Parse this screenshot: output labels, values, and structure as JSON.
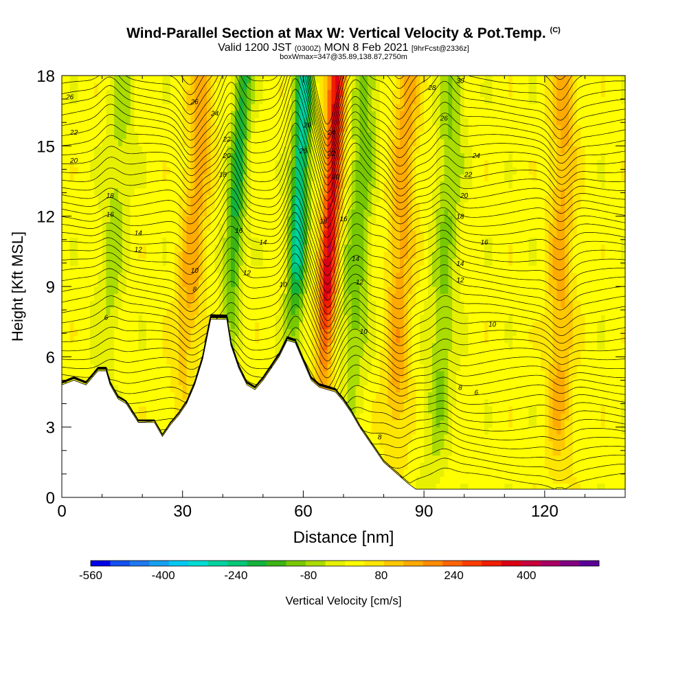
{
  "header": {
    "title": "Wind-Parallel Section at Max W: Vertical Velocity & Pot.Temp.",
    "title_tag": "(C)",
    "valid_prefix": "Valid 1200 JST",
    "valid_utc": "(0300Z)",
    "valid_date": "MON 8 Feb 2021",
    "forecast_info": "[9hrFcst@2336z]",
    "box_info": "boxWmax=347@35.89,138.87,2750m"
  },
  "chart_data": {
    "type": "heatmap",
    "xlabel": "Distance [nm]",
    "ylabel": "Height [Kft MSL]",
    "xlim": [
      0,
      140
    ],
    "ylim": [
      0,
      18
    ],
    "x_ticks": [
      0,
      30,
      60,
      90,
      120
    ],
    "y_ticks": [
      0,
      3,
      6,
      9,
      12,
      15,
      18
    ],
    "colorbar": {
      "label": "Vertical Velocity [cm/s]",
      "range": [
        -560,
        560
      ],
      "tick_values": [
        -560,
        -400,
        -240,
        -80,
        80,
        240,
        400
      ],
      "colors": [
        "#0000e6",
        "#1450f0",
        "#1e78f0",
        "#14a0f0",
        "#00c8f0",
        "#00dcd2",
        "#00d2a0",
        "#00c878",
        "#14b43c",
        "#3cb414",
        "#78c800",
        "#aadc00",
        "#e6f000",
        "#ffff00",
        "#ffe600",
        "#ffc800",
        "#ffaa00",
        "#ff8c00",
        "#ff6400",
        "#ff3c00",
        "#f01e00",
        "#dc0014",
        "#c8003c",
        "#aa0064",
        "#820082",
        "#5a0096"
      ]
    },
    "terrain_kft": [
      [
        0,
        4.8
      ],
      [
        3,
        5.0
      ],
      [
        6,
        4.8
      ],
      [
        9,
        5.4
      ],
      [
        11,
        5.4
      ],
      [
        12,
        4.8
      ],
      [
        14,
        4.2
      ],
      [
        16,
        4.0
      ],
      [
        19,
        3.2
      ],
      [
        23,
        3.2
      ],
      [
        25,
        2.6
      ],
      [
        27,
        3.1
      ],
      [
        29,
        3.5
      ],
      [
        31,
        4.0
      ],
      [
        33,
        4.8
      ],
      [
        35,
        5.9
      ],
      [
        37,
        7.6
      ],
      [
        41,
        7.6
      ],
      [
        42,
        6.5
      ],
      [
        44,
        5.5
      ],
      [
        46,
        4.8
      ],
      [
        48,
        4.6
      ],
      [
        50,
        5.0
      ],
      [
        52,
        5.5
      ],
      [
        54,
        6.0
      ],
      [
        56,
        6.7
      ],
      [
        58,
        6.6
      ],
      [
        60,
        5.8
      ],
      [
        62,
        5.0
      ],
      [
        64,
        4.7
      ],
      [
        66,
        4.6
      ],
      [
        68,
        4.5
      ],
      [
        70,
        4.1
      ],
      [
        72,
        3.6
      ],
      [
        74,
        3.0
      ],
      [
        76,
        2.5
      ],
      [
        78,
        2.0
      ],
      [
        80,
        1.5
      ],
      [
        82,
        1.2
      ],
      [
        84,
        0.9
      ],
      [
        86,
        0.6
      ],
      [
        88,
        0.35
      ],
      [
        92,
        0.35
      ],
      [
        95,
        0.35
      ],
      [
        140,
        0.35
      ]
    ],
    "w_features": [
      {
        "x": 66,
        "sign": 1,
        "peak": 347,
        "tilt": 0.28
      },
      {
        "x": 58,
        "sign": -1,
        "peak": -300,
        "tilt": 0.25
      },
      {
        "x": 42,
        "sign": -1,
        "peak": -210,
        "tilt": 0.35
      },
      {
        "x": 73,
        "sign": -1,
        "peak": -130,
        "tilt": 0.3
      },
      {
        "x": 95,
        "sign": -1,
        "peak": -110,
        "tilt": 0.25
      },
      {
        "x": 12,
        "sign": -1,
        "peak": -80,
        "tilt": 0.4
      },
      {
        "x": 32,
        "sign": 1,
        "peak": 130,
        "tilt": 0.35
      },
      {
        "x": 84,
        "sign": 1,
        "peak": 130,
        "tilt": 0.2
      },
      {
        "x": 124,
        "sign": 1,
        "peak": 120,
        "tilt": 0.1
      }
    ],
    "isentrope_labels": [
      {
        "text": "26",
        "x": 2,
        "y": 17.1
      },
      {
        "text": "22",
        "x": 3,
        "y": 15.6
      },
      {
        "text": "20",
        "x": 3,
        "y": 14.4
      },
      {
        "text": "18",
        "x": 12,
        "y": 12.9
      },
      {
        "text": "16",
        "x": 12,
        "y": 12.1
      },
      {
        "text": "14",
        "x": 19,
        "y": 11.3
      },
      {
        "text": "12",
        "x": 19,
        "y": 10.6
      },
      {
        "text": "10",
        "x": 33,
        "y": 9.7
      },
      {
        "text": "8",
        "x": 33,
        "y": 8.9
      },
      {
        "text": "6",
        "x": 11,
        "y": 7.7
      },
      {
        "text": "26",
        "x": 33,
        "y": 16.9
      },
      {
        "text": "24",
        "x": 38,
        "y": 16.4
      },
      {
        "text": "22",
        "x": 41,
        "y": 15.3
      },
      {
        "text": "20",
        "x": 41,
        "y": 14.6
      },
      {
        "text": "18",
        "x": 40,
        "y": 13.8
      },
      {
        "text": "16",
        "x": 44,
        "y": 11.4
      },
      {
        "text": "14",
        "x": 50,
        "y": 10.9
      },
      {
        "text": "12",
        "x": 46,
        "y": 9.6
      },
      {
        "text": "10",
        "x": 55,
        "y": 9.1
      },
      {
        "text": "26",
        "x": 61,
        "y": 15.9
      },
      {
        "text": "26",
        "x": 60,
        "y": 14.8
      },
      {
        "text": "24",
        "x": 67,
        "y": 15.6
      },
      {
        "text": "22",
        "x": 67,
        "y": 14.7
      },
      {
        "text": "20",
        "x": 68,
        "y": 13.7
      },
      {
        "text": "18",
        "x": 65,
        "y": 11.8
      },
      {
        "text": "16",
        "x": 70,
        "y": 11.9
      },
      {
        "text": "14",
        "x": 73,
        "y": 10.2
      },
      {
        "text": "12",
        "x": 74,
        "y": 9.2
      },
      {
        "text": "10",
        "x": 75,
        "y": 7.1
      },
      {
        "text": "8",
        "x": 79,
        "y": 2.6
      },
      {
        "text": "28",
        "x": 92,
        "y": 17.5
      },
      {
        "text": "30",
        "x": 99,
        "y": 17.8
      },
      {
        "text": "26",
        "x": 95,
        "y": 16.2
      },
      {
        "text": "24",
        "x": 103,
        "y": 14.6
      },
      {
        "text": "22",
        "x": 101,
        "y": 13.8
      },
      {
        "text": "20",
        "x": 100,
        "y": 12.9
      },
      {
        "text": "18",
        "x": 99,
        "y": 12.0
      },
      {
        "text": "16",
        "x": 105,
        "y": 10.9
      },
      {
        "text": "14",
        "x": 99,
        "y": 10.0
      },
      {
        "text": "12",
        "x": 99,
        "y": 9.3
      },
      {
        "text": "10",
        "x": 107,
        "y": 7.4
      },
      {
        "text": "8",
        "x": 99,
        "y": 4.7
      },
      {
        "text": "6",
        "x": 103,
        "y": 4.5
      }
    ]
  }
}
